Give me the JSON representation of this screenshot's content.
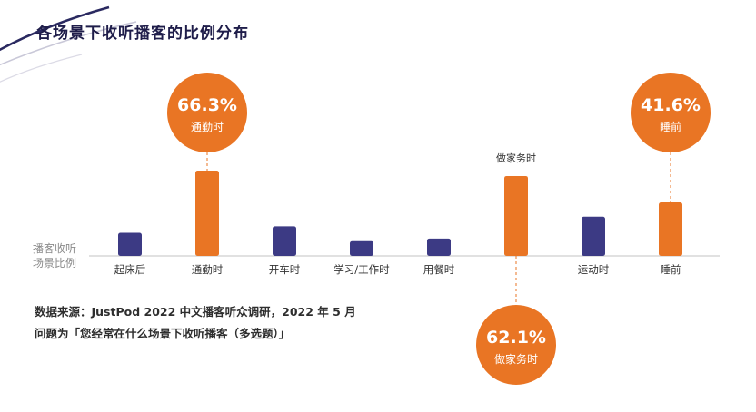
{
  "title": "各场景下收听播客的比例分布",
  "axis_label": [
    "播客收听",
    "场景比例"
  ],
  "note": {
    "line1": "数据来源：JustPod 2022 中文播客听众调研，2022 年 5 月",
    "line2": "问题为「您经常在什么场景下收听播客（多选题）」"
  },
  "colors": {
    "navy": "#3c3a84",
    "orange": "#e97524",
    "title": "#1f1d4a"
  },
  "chart_data": {
    "type": "bar",
    "title": "各场景下收听播客的比例分布",
    "categories": [
      "起床后",
      "通勤时",
      "开车时",
      "学习/工作时",
      "用餐时",
      "做家务时",
      "运动时",
      "睡前"
    ],
    "values": [
      18.0,
      66.3,
      23.0,
      11.5,
      13.5,
      62.1,
      30.5,
      41.6
    ],
    "highlight": [
      false,
      true,
      false,
      false,
      false,
      true,
      false,
      true
    ],
    "labeled_values": [
      {
        "category": "通勤时",
        "value_label": "66.3%",
        "position": "above"
      },
      {
        "category": "做家务时",
        "value_label": "62.1%",
        "position": "below"
      },
      {
        "category": "睡前",
        "value_label": "41.6%",
        "position": "above"
      }
    ],
    "ylabel": "播客收听场景比例",
    "ylim": [
      0,
      70
    ],
    "grid": false
  }
}
